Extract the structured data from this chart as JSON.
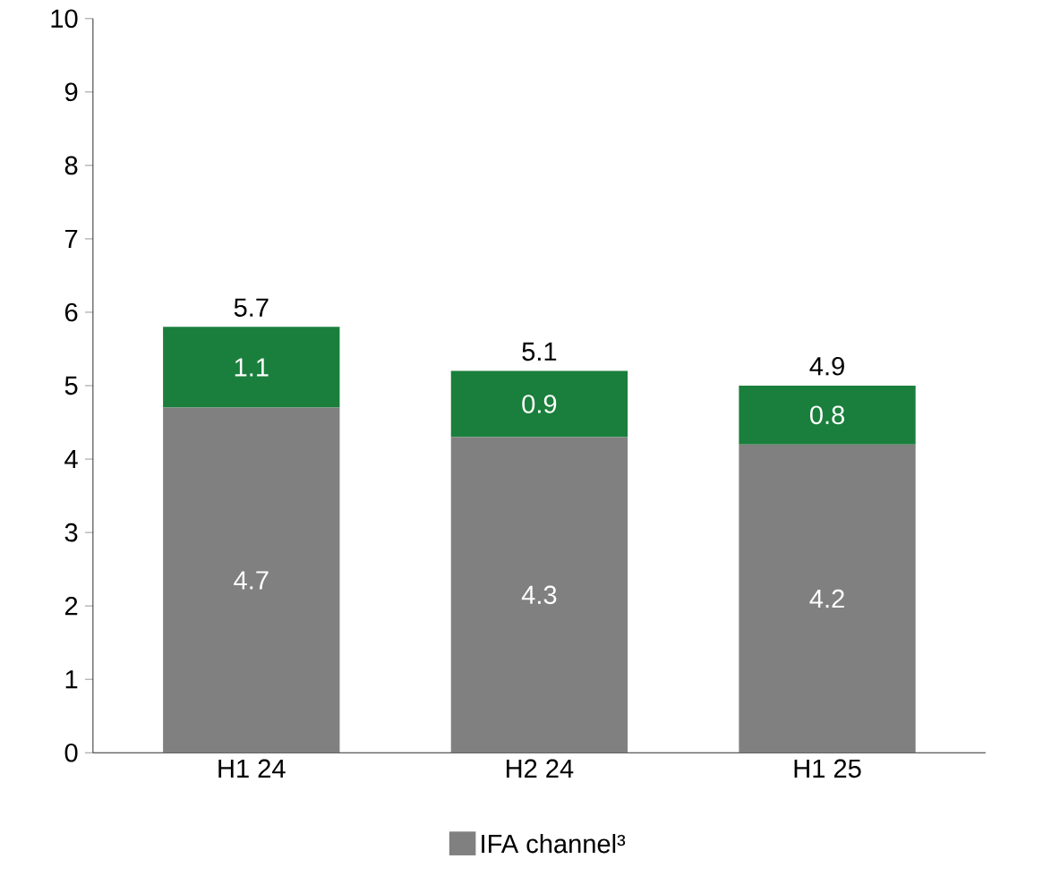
{
  "chart_data": {
    "type": "bar",
    "stacked": true,
    "categories": [
      "H1 24",
      "H2 24",
      "H1 25"
    ],
    "series": [
      {
        "name": "IFA channel³",
        "color": "#808080",
        "values": [
          4.7,
          4.3,
          4.2
        ],
        "value_labels": [
          "4.7",
          "4.3",
          "4.2"
        ]
      },
      {
        "color": "#1a7f3c",
        "values": [
          1.1,
          0.9,
          0.8
        ],
        "value_labels": [
          "1.1",
          "0.9",
          "0.8"
        ]
      }
    ],
    "totals": [
      "5.7",
      "5.1",
      "4.9"
    ],
    "ylim": [
      0,
      10
    ],
    "yticks": [
      0,
      1,
      2,
      3,
      4,
      5,
      6,
      7,
      8,
      9,
      10
    ],
    "grid": false,
    "legend": "bottom"
  }
}
